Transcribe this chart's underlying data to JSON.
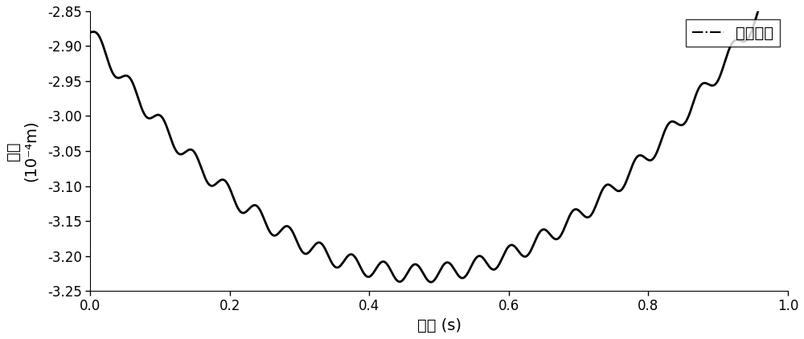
{
  "xlabel": "时间 (s)",
  "ylabel_top": "位移",
  "ylabel_bot": "(10⁻⁴m)",
  "xlim": [
    0.0,
    1.0
  ],
  "ylim": [
    -3.25,
    -2.85
  ],
  "xticks": [
    0.0,
    0.2,
    0.4,
    0.6,
    0.8,
    1.0
  ],
  "yticks": [
    -3.25,
    -3.2,
    -3.15,
    -3.1,
    -3.05,
    -3.0,
    -2.95,
    -2.9,
    -2.85
  ],
  "legend_label": "跨中节点",
  "line_color": "#000000",
  "line_width": 2.0,
  "n_points": 5000,
  "fast_freq": 22,
  "t0": 0.47,
  "y_min": -3.225,
  "a": 1.56,
  "fast_amp": 0.013,
  "figsize": [
    10.0,
    4.22
  ],
  "dpi": 100
}
